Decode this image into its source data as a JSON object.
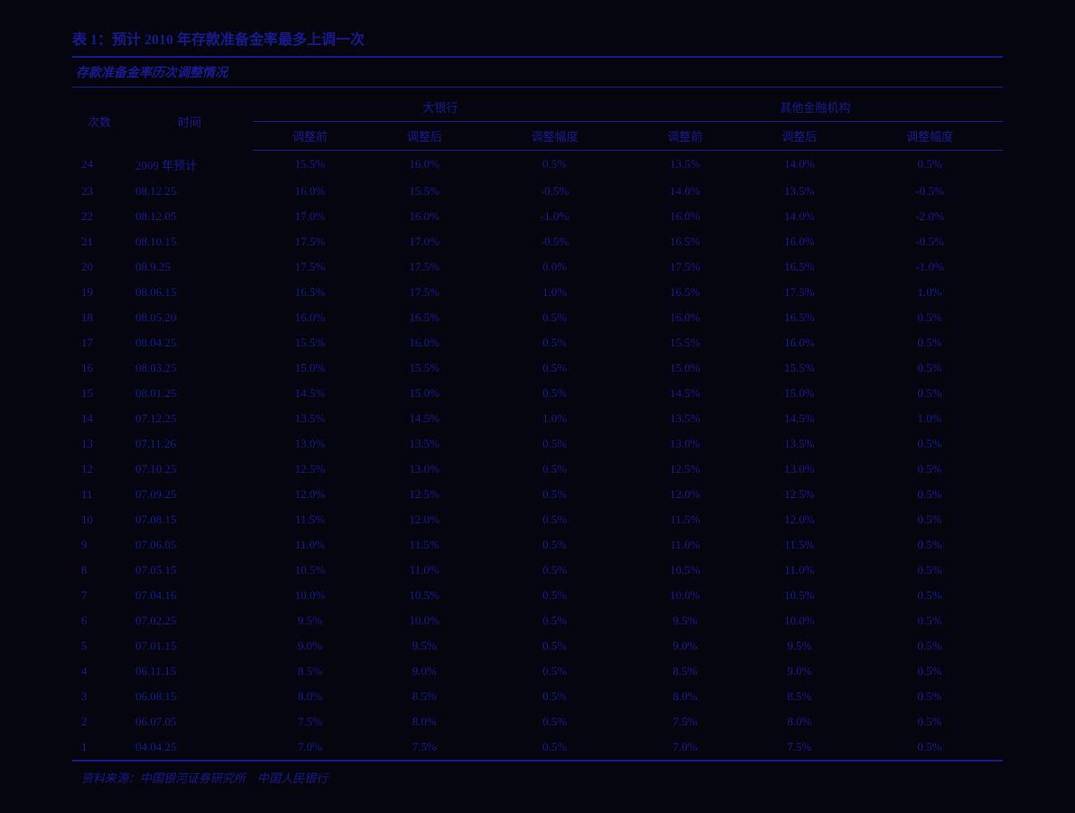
{
  "title": "表 1：预计 2010 年存款准备金率最多上调一次",
  "subtitle": "存款准备金率历次调整情况",
  "header": {
    "col_num": "次数",
    "col_time": "时间",
    "group_big_bank": "大银行",
    "group_other": "其他金融机构",
    "sub_before": "调整前",
    "sub_after": "调整后",
    "sub_change": "调整幅度"
  },
  "rows": [
    {
      "n": "24",
      "t": "2009 年预计",
      "b0": "15.5%",
      "b1": "16.0%",
      "bc": "0.5%",
      "o0": "13.5%",
      "o1": "14.0%",
      "oc": "0.5%"
    },
    {
      "n": "23",
      "t": "08.12.25",
      "b0": "16.0%",
      "b1": "15.5%",
      "bc": "-0.5%",
      "o0": "14.0%",
      "o1": "13.5%",
      "oc": "-0.5%"
    },
    {
      "n": "22",
      "t": "08.12.05",
      "b0": "17.0%",
      "b1": "16.0%",
      "bc": "-1.0%",
      "o0": "16.0%",
      "o1": "14.0%",
      "oc": "-2.0%"
    },
    {
      "n": "21",
      "t": "08.10.15",
      "b0": "17.5%",
      "b1": "17.0%",
      "bc": "-0.5%",
      "o0": "16.5%",
      "o1": "16.0%",
      "oc": "-0.5%"
    },
    {
      "n": "20",
      "t": "08.9.25",
      "b0": "17.5%",
      "b1": "17.5%",
      "bc": "0.0%",
      "o0": "17.5%",
      "o1": "16.5%",
      "oc": "-1.0%"
    },
    {
      "n": "19",
      "t": "08.06.15",
      "b0": "16.5%",
      "b1": "17.5%",
      "bc": "1.0%",
      "o0": "16.5%",
      "o1": "17.5%",
      "oc": "1.0%"
    },
    {
      "n": "18",
      "t": "08.05.20",
      "b0": "16.0%",
      "b1": "16.5%",
      "bc": "0.5%",
      "o0": "16.0%",
      "o1": "16.5%",
      "oc": "0.5%"
    },
    {
      "n": "17",
      "t": "08.04.25",
      "b0": "15.5%",
      "b1": "16.0%",
      "bc": "0.5%",
      "o0": "15.5%",
      "o1": "16.0%",
      "oc": "0.5%"
    },
    {
      "n": "16",
      "t": "08.03.25",
      "b0": "15.0%",
      "b1": "15.5%",
      "bc": "0.5%",
      "o0": "15.0%",
      "o1": "15.5%",
      "oc": "0.5%"
    },
    {
      "n": "15",
      "t": "08.01.25",
      "b0": "14.5%",
      "b1": "15.0%",
      "bc": "0.5%",
      "o0": "14.5%",
      "o1": "15.0%",
      "oc": "0.5%"
    },
    {
      "n": "14",
      "t": "07.12.25",
      "b0": "13.5%",
      "b1": "14.5%",
      "bc": "1.0%",
      "o0": "13.5%",
      "o1": "14.5%",
      "oc": "1.0%"
    },
    {
      "n": "13",
      "t": "07.11.26",
      "b0": "13.0%",
      "b1": "13.5%",
      "bc": "0.5%",
      "o0": "13.0%",
      "o1": "13.5%",
      "oc": "0.5%"
    },
    {
      "n": "12",
      "t": "07.10.25",
      "b0": "12.5%",
      "b1": "13.0%",
      "bc": "0.5%",
      "o0": "12.5%",
      "o1": "13.0%",
      "oc": "0.5%"
    },
    {
      "n": "11",
      "t": "07.09.25",
      "b0": "12.0%",
      "b1": "12.5%",
      "bc": "0.5%",
      "o0": "12.0%",
      "o1": "12.5%",
      "oc": "0.5%"
    },
    {
      "n": "10",
      "t": "07.08.15",
      "b0": "11.5%",
      "b1": "12.0%",
      "bc": "0.5%",
      "o0": "11.5%",
      "o1": "12.0%",
      "oc": "0.5%"
    },
    {
      "n": "9",
      "t": "07.06.05",
      "b0": "11.0%",
      "b1": "11.5%",
      "bc": "0.5%",
      "o0": "11.0%",
      "o1": "11.5%",
      "oc": "0.5%"
    },
    {
      "n": "8",
      "t": "07.05.15",
      "b0": "10.5%",
      "b1": "11.0%",
      "bc": "0.5%",
      "o0": "10.5%",
      "o1": "11.0%",
      "oc": "0.5%"
    },
    {
      "n": "7",
      "t": "07.04.16",
      "b0": "10.0%",
      "b1": "10.5%",
      "bc": "0.5%",
      "o0": "10.0%",
      "o1": "10.5%",
      "oc": "0.5%"
    },
    {
      "n": "6",
      "t": "07.02.25",
      "b0": "9.5%",
      "b1": "10.0%",
      "bc": "0.5%",
      "o0": "9.5%",
      "o1": "10.0%",
      "oc": "0.5%"
    },
    {
      "n": "5",
      "t": "07.01.15",
      "b0": "9.0%",
      "b1": "9.5%",
      "bc": "0.5%",
      "o0": "9.0%",
      "o1": "9.5%",
      "oc": "0.5%"
    },
    {
      "n": "4",
      "t": "06.11.15",
      "b0": "8.5%",
      "b1": "9.0%",
      "bc": "0.5%",
      "o0": "8.5%",
      "o1": "9.0%",
      "oc": "0.5%"
    },
    {
      "n": "3",
      "t": "06.08.15",
      "b0": "8.0%",
      "b1": "8.5%",
      "bc": "0.5%",
      "o0": "8.0%",
      "o1": "8.5%",
      "oc": "0.5%"
    },
    {
      "n": "2",
      "t": "06.07.05",
      "b0": "7.5%",
      "b1": "8.0%",
      "bc": "0.5%",
      "o0": "7.5%",
      "o1": "8.0%",
      "oc": "0.5%"
    },
    {
      "n": "1",
      "t": "04.04.25",
      "b0": "7.0%",
      "b1": "7.5%",
      "bc": "0.5%",
      "o0": "7.0%",
      "o1": "7.5%",
      "oc": "0.5%"
    }
  ],
  "source": "资料来源：中国银河证券研究所　中国人民银行",
  "styling": {
    "background_color": "#050510",
    "text_color": "#1a1a8f",
    "border_color": "#1a1a8f",
    "title_fontsize": 16,
    "body_fontsize": 13,
    "font_family": "SimSun"
  }
}
